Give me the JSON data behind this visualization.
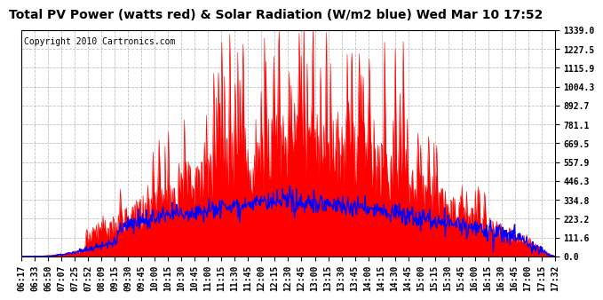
{
  "title": "Total PV Power (watts red) & Solar Radiation (W/m2 blue) Wed Mar 10 17:52",
  "copyright": "Copyright 2010 Cartronics.com",
  "ymax": 1339.0,
  "yticks": [
    0.0,
    111.6,
    223.2,
    334.8,
    446.3,
    557.9,
    669.5,
    781.1,
    892.7,
    1004.3,
    1115.9,
    1227.5,
    1339.0
  ],
  "ytick_labels": [
    "0.0",
    "111.6",
    "223.2",
    "334.8",
    "446.3",
    "557.9",
    "669.5",
    "781.1",
    "892.7",
    "1004.3",
    "1115.9",
    "1227.5",
    "1339.0"
  ],
  "xtick_labels": [
    "06:17",
    "06:33",
    "06:50",
    "07:07",
    "07:25",
    "07:52",
    "08:09",
    "09:15",
    "09:30",
    "09:45",
    "10:00",
    "10:15",
    "10:30",
    "10:45",
    "11:00",
    "11:15",
    "11:30",
    "11:45",
    "12:00",
    "12:15",
    "12:30",
    "12:45",
    "13:00",
    "13:15",
    "13:30",
    "13:45",
    "14:00",
    "14:15",
    "14:30",
    "14:45",
    "15:00",
    "15:15",
    "15:30",
    "15:45",
    "16:00",
    "16:15",
    "16:30",
    "16:45",
    "17:00",
    "17:15",
    "17:32"
  ],
  "title_fontsize": 10,
  "copyright_fontsize": 7,
  "tick_fontsize": 7,
  "background_color": "#ffffff",
  "grid_color": "#b0b0b0",
  "red_color": "#ff0000",
  "blue_color": "#0000ff"
}
